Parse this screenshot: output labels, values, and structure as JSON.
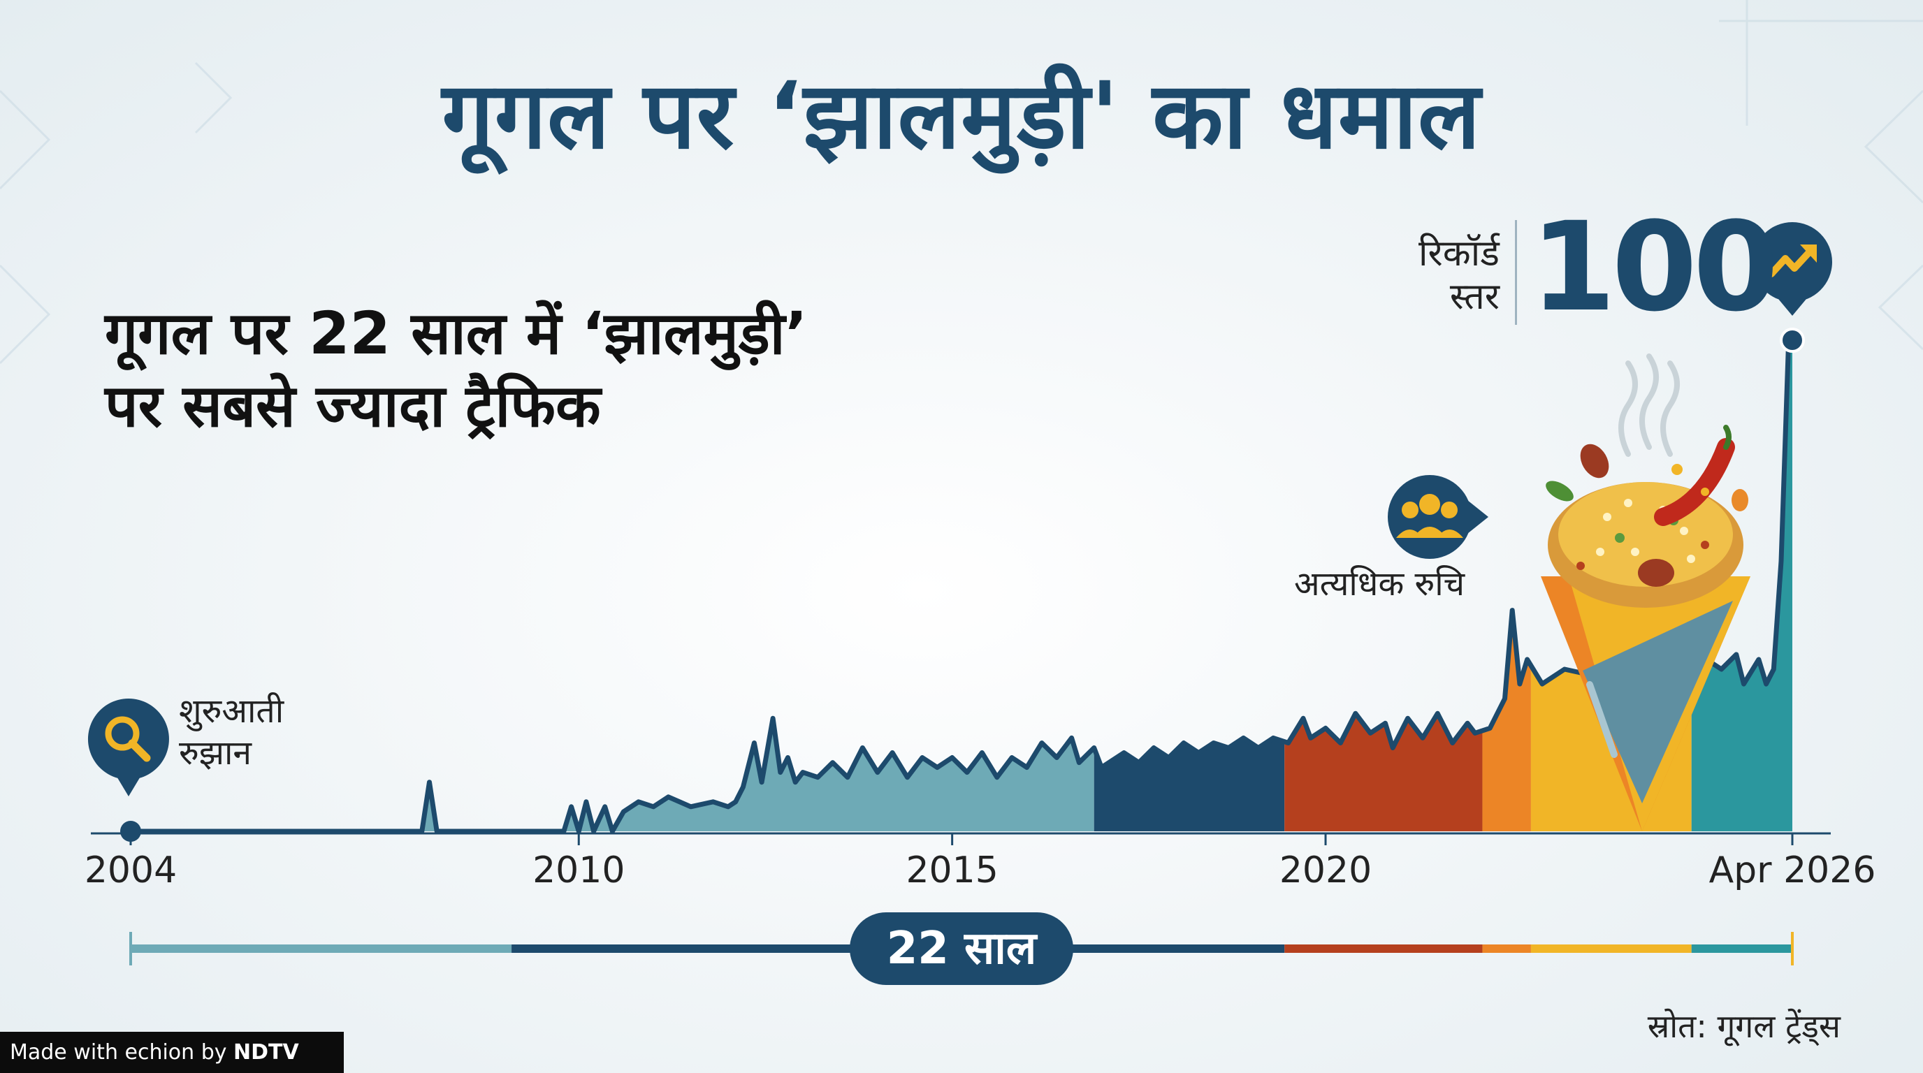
{
  "title": "गूगल पर ‘झालमुड़ी' का धमाल",
  "subtitle": {
    "line1": "गूगल पर 22 साल में ‘झालमुड़ी’",
    "line2": "पर सबसे ज्यादा ट्रैफिक"
  },
  "annotations": {
    "early": {
      "line1": "शुरुआती",
      "line2": "रुझान",
      "icon": "magnifier-icon"
    },
    "interest": {
      "text": "अत्यधिक रुचि",
      "icon": "people-icon"
    },
    "record": {
      "line1": "रिकॉर्ड",
      "line2": "स्तर",
      "value": "100",
      "icon": "trend-up-icon"
    }
  },
  "span_label": "22 साल",
  "source": "स्रोत: गूगल ट्रेंड्स",
  "branding": {
    "prefix": "Made with ",
    "echion": "echion",
    "by": " by ",
    "ndtv": "NDTV"
  },
  "colors": {
    "title": "#1d4a6c",
    "navy": "#1d4a6c",
    "teal_light": "#6eaab6",
    "rust": "#b5401e",
    "orange": "#ec8526",
    "gold": "#f1b527",
    "teal": "#2b979e"
  },
  "chart_data": {
    "type": "area",
    "title": "गूगल पर ‘झालमुड़ी' का धमाल",
    "xlabel": "",
    "ylabel": "",
    "ylim": [
      0,
      100
    ],
    "xlim": [
      2004,
      2026.25
    ],
    "tick_labels": [
      {
        "value": 2004,
        "label": "2004"
      },
      {
        "value": 2010,
        "label": "2010"
      },
      {
        "value": 2015,
        "label": "2015"
      },
      {
        "value": 2020,
        "label": "2020"
      },
      {
        "value": 2026.25,
        "label": "Apr 2026"
      }
    ],
    "points": [
      [
        2004.0,
        0
      ],
      [
        2007.0,
        0
      ],
      [
        2007.9,
        0
      ],
      [
        2008.0,
        10
      ],
      [
        2008.1,
        0
      ],
      [
        2009.8,
        0
      ],
      [
        2009.9,
        5
      ],
      [
        2010.0,
        0
      ],
      [
        2010.1,
        6
      ],
      [
        2010.2,
        0
      ],
      [
        2010.35,
        5
      ],
      [
        2010.45,
        0
      ],
      [
        2010.6,
        4
      ],
      [
        2010.8,
        6
      ],
      [
        2011.0,
        5
      ],
      [
        2011.2,
        7
      ],
      [
        2011.5,
        5
      ],
      [
        2011.8,
        6
      ],
      [
        2012.0,
        5
      ],
      [
        2012.1,
        6
      ],
      [
        2012.2,
        9
      ],
      [
        2012.35,
        18
      ],
      [
        2012.45,
        10
      ],
      [
        2012.6,
        23
      ],
      [
        2012.7,
        12
      ],
      [
        2012.8,
        15
      ],
      [
        2012.9,
        10
      ],
      [
        2013.0,
        12
      ],
      [
        2013.2,
        11
      ],
      [
        2013.4,
        14
      ],
      [
        2013.6,
        11
      ],
      [
        2013.8,
        17
      ],
      [
        2014.0,
        12
      ],
      [
        2014.2,
        16
      ],
      [
        2014.4,
        11
      ],
      [
        2014.6,
        15
      ],
      [
        2014.8,
        13
      ],
      [
        2015.0,
        15
      ],
      [
        2015.2,
        12
      ],
      [
        2015.4,
        16
      ],
      [
        2015.6,
        11
      ],
      [
        2015.8,
        15
      ],
      [
        2016.0,
        13
      ],
      [
        2016.2,
        18
      ],
      [
        2016.4,
        15
      ],
      [
        2016.6,
        19
      ],
      [
        2016.7,
        14
      ],
      [
        2016.9,
        17
      ],
      [
        2017.0,
        13
      ],
      [
        2017.3,
        16
      ],
      [
        2017.5,
        14
      ],
      [
        2017.7,
        17
      ],
      [
        2017.9,
        15
      ],
      [
        2018.1,
        18
      ],
      [
        2018.3,
        16
      ],
      [
        2018.5,
        18
      ],
      [
        2018.7,
        17
      ],
      [
        2018.9,
        19
      ],
      [
        2019.1,
        17
      ],
      [
        2019.3,
        19
      ],
      [
        2019.5,
        18
      ],
      [
        2019.7,
        23
      ],
      [
        2019.8,
        19
      ],
      [
        2020.0,
        21
      ],
      [
        2020.2,
        18
      ],
      [
        2020.4,
        24
      ],
      [
        2020.6,
        20
      ],
      [
        2020.8,
        22
      ],
      [
        2020.9,
        17
      ],
      [
        2021.1,
        23
      ],
      [
        2021.3,
        19
      ],
      [
        2021.5,
        24
      ],
      [
        2021.7,
        18
      ],
      [
        2021.9,
        22
      ],
      [
        2022.0,
        20
      ],
      [
        2022.2,
        21
      ],
      [
        2022.4,
        27
      ],
      [
        2022.5,
        45
      ],
      [
        2022.6,
        30
      ],
      [
        2022.7,
        35
      ],
      [
        2022.9,
        30
      ],
      [
        2023.2,
        33
      ],
      [
        2023.5,
        32
      ],
      [
        2023.8,
        31
      ],
      [
        2024.2,
        33
      ],
      [
        2024.6,
        35
      ],
      [
        2025.0,
        36
      ],
      [
        2025.3,
        33
      ],
      [
        2025.5,
        36
      ],
      [
        2025.6,
        30
      ],
      [
        2025.8,
        35
      ],
      [
        2025.9,
        30
      ],
      [
        2026.0,
        33
      ],
      [
        2026.1,
        55
      ],
      [
        2026.2,
        100
      ],
      [
        2026.25,
        100
      ]
    ],
    "segments": [
      {
        "from": 2004,
        "to": 2016.9,
        "color": "#6eaab6"
      },
      {
        "from": 2016.9,
        "to": 2019.45,
        "color": "#1d4a6c"
      },
      {
        "from": 2019.45,
        "to": 2022.1,
        "color": "#b5401e"
      },
      {
        "from": 2022.1,
        "to": 2022.75,
        "color": "#ec8526"
      },
      {
        "from": 2022.75,
        "to": 2024.9,
        "color": "#f1b527"
      },
      {
        "from": 2024.9,
        "to": 2026.25,
        "color": "#2b979e"
      }
    ],
    "span_segments": [
      {
        "from": 2004,
        "to": 2009.1,
        "color": "#6eaab6"
      },
      {
        "from": 2009.1,
        "to": 2019.45,
        "color": "#1d4a6c"
      },
      {
        "from": 2019.45,
        "to": 2022.1,
        "color": "#b5401e"
      },
      {
        "from": 2022.1,
        "to": 2022.75,
        "color": "#ec8526"
      },
      {
        "from": 2022.75,
        "to": 2024.9,
        "color": "#f1b527"
      },
      {
        "from": 2024.9,
        "to": 2026.25,
        "color": "#2b979e"
      }
    ]
  }
}
